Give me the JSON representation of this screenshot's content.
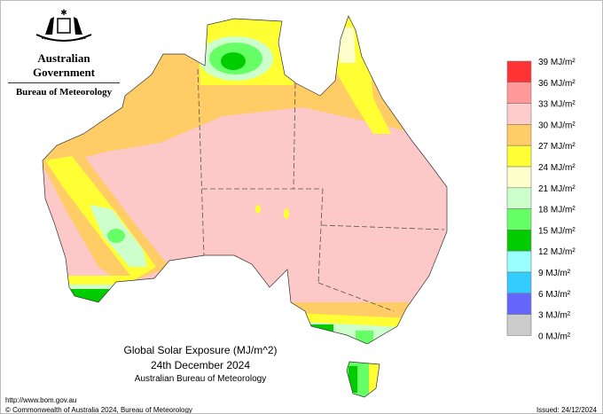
{
  "header": {
    "government": "Australian Government",
    "agency": "Bureau of Meteorology"
  },
  "map": {
    "title": "Global Solar Exposure (MJ/m^2)",
    "date": "24th December 2024",
    "source": "Australian Bureau of Meteorology",
    "background_color": "#fcc8c8"
  },
  "legend": {
    "labels": [
      "39 MJ/m²",
      "36 MJ/m²",
      "33 MJ/m²",
      "30 MJ/m²",
      "27 MJ/m²",
      "24 MJ/m²",
      "21 MJ/m²",
      "18 MJ/m²",
      "15 MJ/m²",
      "12 MJ/m²",
      "9 MJ/m²",
      "6 MJ/m²",
      "3 MJ/m²",
      "0 MJ/m²"
    ],
    "colors": [
      "#ff3333",
      "#ff9999",
      "#ffcccc",
      "#ffcc66",
      "#ffff33",
      "#ffffcc",
      "#ccffcc",
      "#66ff66",
      "#00cc00",
      "#99ffff",
      "#33ccff",
      "#6666ff",
      "#cccccc"
    ]
  },
  "footer": {
    "url": "http://www.bom.gov.au",
    "copyright": "© Commonwealth of Australia 2024, Bureau of Meteorology",
    "issued": "Issued: 24/12/2024"
  }
}
